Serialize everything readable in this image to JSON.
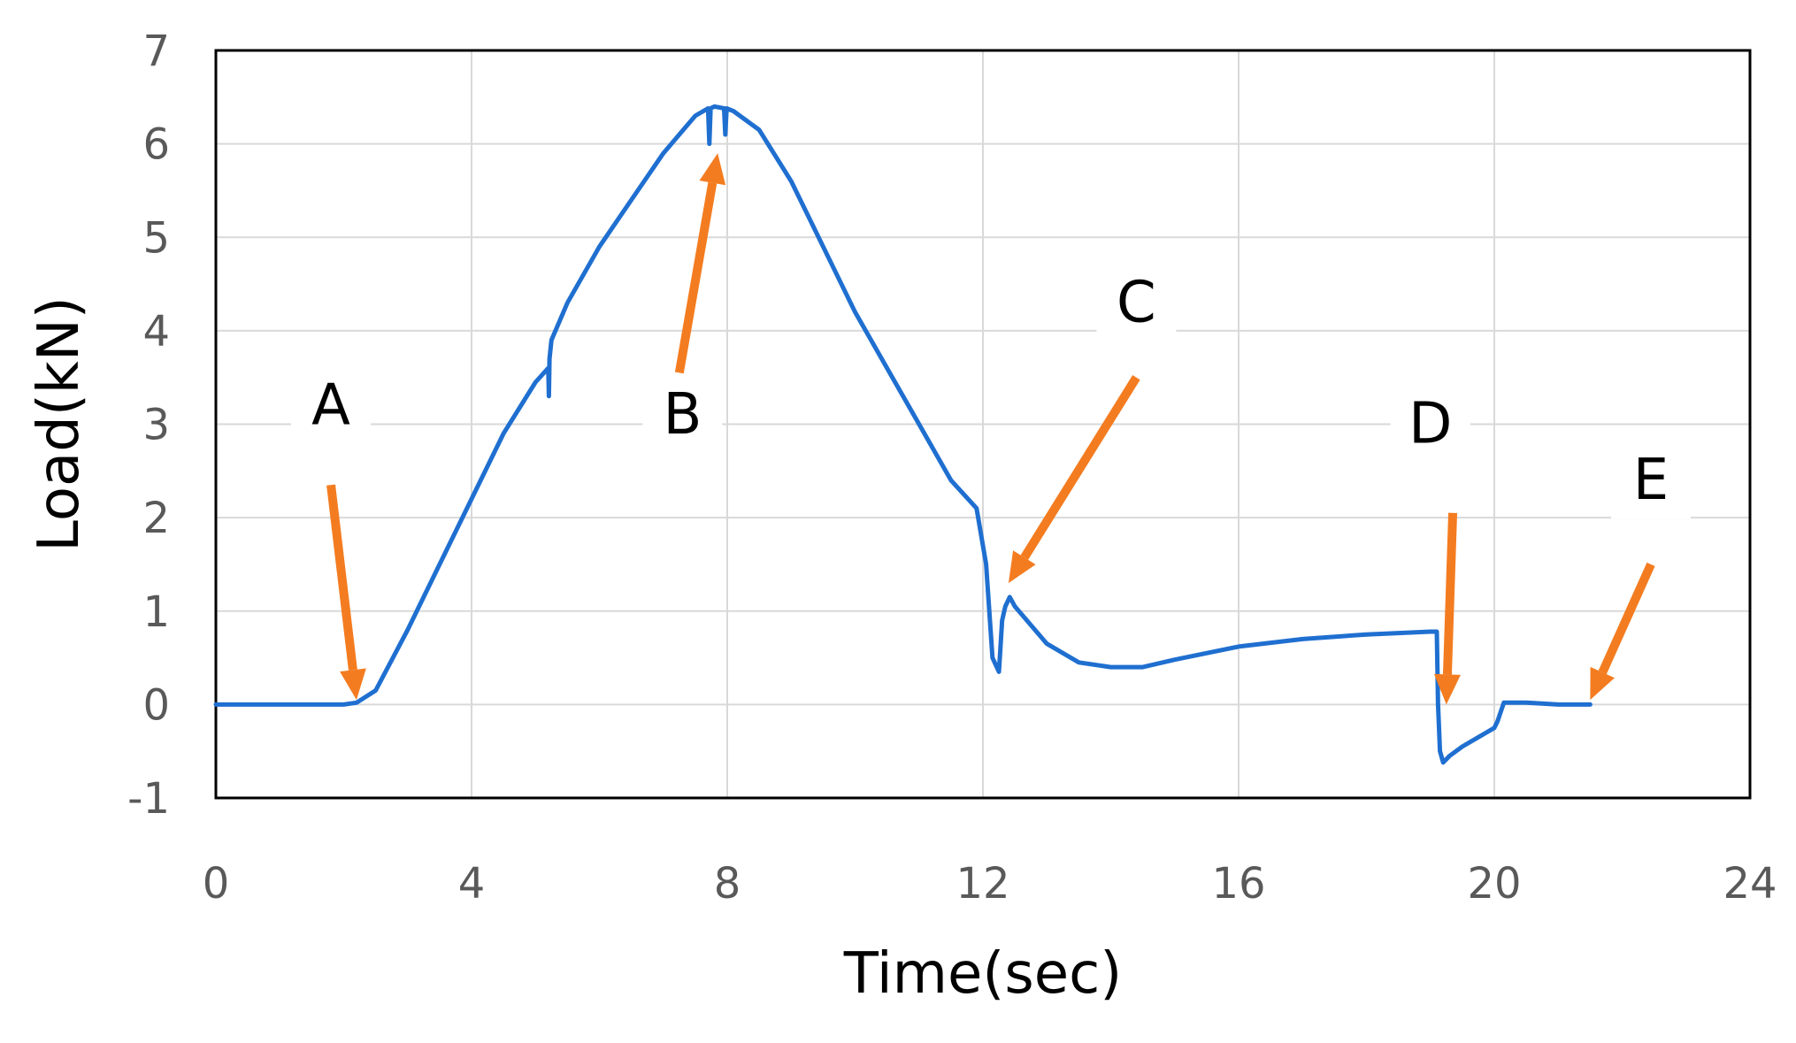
{
  "chart_data": {
    "type": "line",
    "xlabel": "Time(sec)",
    "ylabel": "Load(kN)",
    "xlim": [
      0,
      24
    ],
    "ylim": [
      -1,
      7
    ],
    "xticks": [
      0,
      4,
      8,
      12,
      16,
      20,
      24
    ],
    "yticks": [
      -1,
      0,
      1,
      2,
      3,
      4,
      5,
      6,
      7
    ],
    "grid": true,
    "legend": "none",
    "series_color": "#1F6FD0",
    "annotation_color": "#F47C20",
    "series": [
      {
        "x": [
          0,
          1,
          2,
          2.2,
          2.5,
          3,
          3.5,
          4,
          4.5,
          5,
          5.2,
          5.21,
          5.22,
          5.25,
          5.5,
          6,
          6.5,
          7,
          7.5,
          7.7,
          7.72,
          7.74,
          7.8,
          7.95,
          7.97,
          7.99,
          8.1,
          8.5,
          9,
          9.5,
          10,
          10.5,
          11,
          11.5,
          11.9,
          12.05,
          12.1,
          12.15,
          12.25,
          12.3,
          12.35,
          12.42,
          12.5,
          13,
          13.5,
          14,
          14.5,
          15,
          16,
          17,
          18,
          19,
          19.1,
          19.12,
          19.15,
          19.2,
          19.3,
          19.5,
          20,
          20.05,
          20.15,
          20.5,
          21,
          21.5
        ],
        "y": [
          0,
          0,
          0,
          0.02,
          0.15,
          0.8,
          1.5,
          2.2,
          2.9,
          3.45,
          3.6,
          3.3,
          3.7,
          3.9,
          4.3,
          4.9,
          5.4,
          5.9,
          6.3,
          6.38,
          6.0,
          6.38,
          6.4,
          6.38,
          6.1,
          6.38,
          6.35,
          6.15,
          5.6,
          4.9,
          4.2,
          3.6,
          3.0,
          2.4,
          2.1,
          1.5,
          1.0,
          0.5,
          0.35,
          0.9,
          1.05,
          1.15,
          1.05,
          0.65,
          0.45,
          0.4,
          0.4,
          0.48,
          0.62,
          0.7,
          0.75,
          0.78,
          0.78,
          0.0,
          -0.5,
          -0.62,
          -0.55,
          -0.45,
          -0.25,
          -0.18,
          0.02,
          0.02,
          0.0,
          0.0
        ]
      }
    ],
    "annotations": [
      {
        "label": "A",
        "x": 2.2,
        "y": 0.05
      },
      {
        "label": "B",
        "x": 7.85,
        "y": 5.9
      },
      {
        "label": "C",
        "x": 12.4,
        "y": 1.3
      },
      {
        "label": "D",
        "x": 19.25,
        "y": 0.0
      },
      {
        "label": "E",
        "x": 21.5,
        "y": 0.05
      }
    ]
  }
}
